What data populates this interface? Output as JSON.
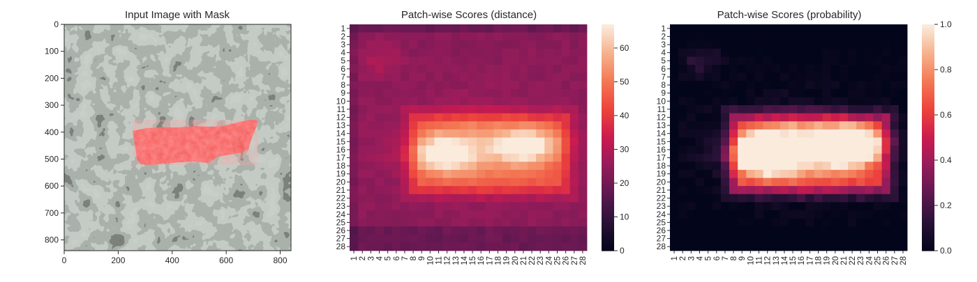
{
  "chart_data": [
    {
      "type": "image",
      "title": "Input Image with Mask",
      "xlim": [
        0,
        840
      ],
      "ylim": [
        840,
        0
      ],
      "x_ticks": [
        0,
        200,
        400,
        600,
        800
      ],
      "y_ticks": [
        0,
        100,
        200,
        300,
        400,
        500,
        600,
        700,
        800
      ],
      "colors": {
        "texture_light": "#8f9a94",
        "texture_dark": "#2b302d",
        "mask": "#ff5a5a"
      }
    },
    {
      "type": "heatmap",
      "title": "Patch-wise Scores (distance)",
      "rows": 28,
      "cols": 28,
      "x_ticks": [
        1,
        2,
        3,
        4,
        5,
        6,
        7,
        8,
        9,
        10,
        11,
        12,
        13,
        14,
        15,
        16,
        17,
        18,
        19,
        20,
        21,
        22,
        23,
        24,
        25,
        26,
        27,
        28
      ],
      "y_ticks": [
        1,
        2,
        3,
        4,
        5,
        6,
        7,
        8,
        9,
        10,
        11,
        12,
        13,
        14,
        15,
        16,
        17,
        18,
        19,
        20,
        21,
        22,
        23,
        24,
        25,
        26,
        27,
        28
      ],
      "colorbar_range": [
        0,
        67
      ],
      "colorbar_ticks": [
        0,
        10,
        20,
        30,
        40,
        50,
        60
      ],
      "colormap": "rocket"
    },
    {
      "type": "heatmap",
      "title": "Patch-wise Scores (probability)",
      "rows": 28,
      "cols": 28,
      "x_ticks": [
        1,
        2,
        3,
        4,
        5,
        6,
        7,
        8,
        9,
        10,
        11,
        12,
        13,
        14,
        15,
        16,
        17,
        18,
        19,
        20,
        21,
        22,
        23,
        24,
        25,
        26,
        27,
        28
      ],
      "y_ticks": [
        1,
        2,
        3,
        4,
        5,
        6,
        7,
        8,
        9,
        10,
        11,
        12,
        13,
        14,
        15,
        16,
        17,
        18,
        19,
        20,
        21,
        22,
        23,
        24,
        25,
        26,
        27,
        28
      ],
      "colorbar_range": [
        0,
        1
      ],
      "colorbar_ticks": [
        "0.0",
        "0.2",
        "0.4",
        "0.6",
        "0.8",
        "1.0"
      ],
      "colormap": "rocket"
    }
  ]
}
